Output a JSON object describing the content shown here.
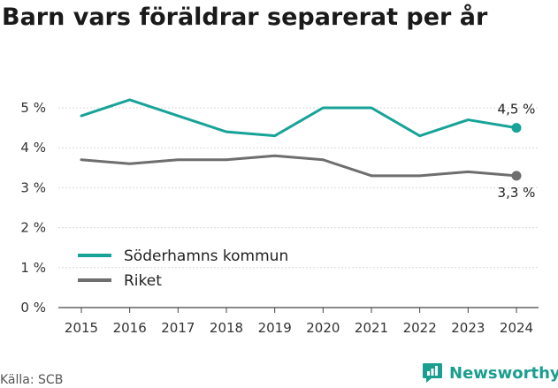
{
  "title": "Barn vars föräldrar separerat per år",
  "source": "Källa: SCB",
  "brand": {
    "name": "Newsworthy",
    "icon": "newsworthy-logo-icon"
  },
  "chart_data": {
    "type": "line",
    "title": "Barn vars föräldrar separerat per år",
    "x": [
      2015,
      2016,
      2017,
      2018,
      2019,
      2020,
      2021,
      2022,
      2023,
      2024
    ],
    "ylim": [
      0,
      5
    ],
    "yticks": [
      0,
      1,
      2,
      3,
      4,
      5
    ],
    "ytick_labels": [
      "0 %",
      "1 %",
      "2 %",
      "3 %",
      "4 %",
      "5 %"
    ],
    "grid": true,
    "legend_position": "bottom-left",
    "series": [
      {
        "name": "Söderhamns kommun",
        "color": "#17a398",
        "values": [
          4.8,
          5.2,
          4.8,
          4.4,
          4.3,
          5.0,
          5.0,
          4.3,
          4.7,
          4.5
        ],
        "end_label": "4,5 %"
      },
      {
        "name": "Riket",
        "color": "#6e6e6e",
        "values": [
          3.7,
          3.6,
          3.7,
          3.7,
          3.8,
          3.7,
          3.3,
          3.3,
          3.4,
          3.3
        ],
        "end_label": "3,3 %"
      }
    ]
  }
}
